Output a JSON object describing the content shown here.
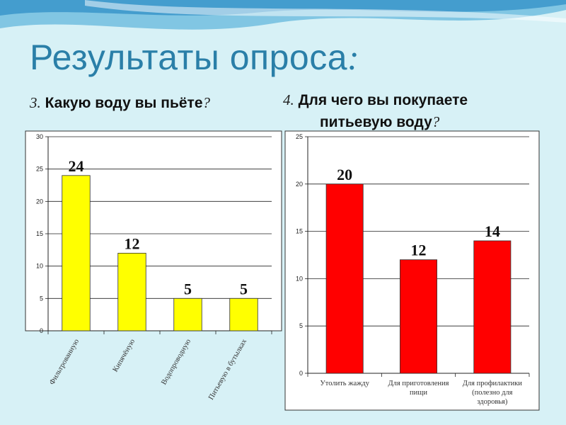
{
  "slide": {
    "title_main": "Результаты опроса",
    "title_colon": ":"
  },
  "questions": [
    {
      "number": "3.",
      "text": "Какую воду вы пьёте",
      "mark": "?"
    },
    {
      "number": "4.",
      "text_line1": "Для чего вы покупаете",
      "text_line2": "питьевую воду",
      "mark": "?"
    }
  ],
  "chart_data": [
    {
      "type": "bar",
      "categories": [
        "Фильтрованную",
        "Кипячёную",
        "Водопроводную",
        "Питьевую в бутылках"
      ],
      "values": [
        24,
        12,
        5,
        5
      ],
      "ylim": [
        0,
        30
      ],
      "yticks": [
        0,
        5,
        10,
        15,
        20,
        25,
        30
      ],
      "grid": true,
      "bar_color": "#ffff00",
      "category_label_rotation": "vertical-diagonal"
    },
    {
      "type": "bar",
      "categories": [
        [
          "Утолить жажду"
        ],
        [
          "Для приготовления",
          "пищи"
        ],
        [
          "Для профилактики",
          "(полезно для",
          "здоровья)"
        ]
      ],
      "values": [
        20,
        12,
        14
      ],
      "ylim": [
        0,
        25
      ],
      "yticks": [
        0,
        5,
        10,
        15,
        20,
        25
      ],
      "grid": true,
      "bar_color": "#ff0000"
    }
  ]
}
